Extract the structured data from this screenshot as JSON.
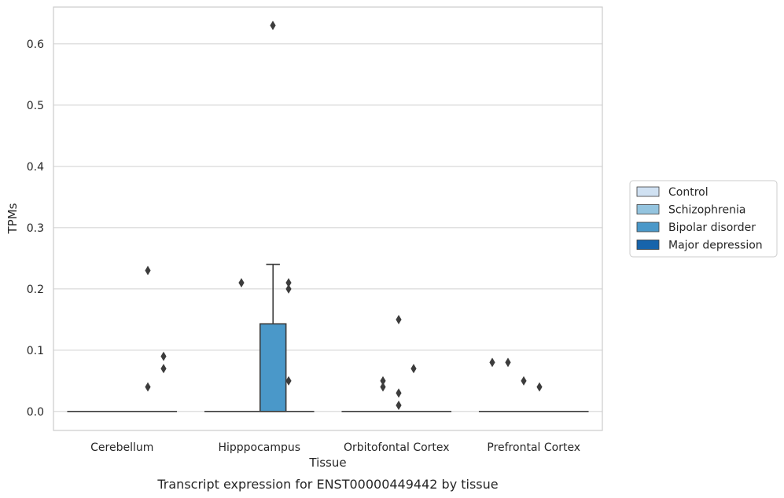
{
  "chart_data": {
    "type": "box",
    "caption": "Transcript expression for ENST00000449442 by tissue",
    "xlabel": "Tissue",
    "ylabel": "TPMs",
    "ylim": [
      -0.031,
      0.66
    ],
    "yticks": [
      "0.0",
      "0.1",
      "0.2",
      "0.3",
      "0.4",
      "0.5",
      "0.6"
    ],
    "grid": true,
    "legend_position": "right",
    "categories": [
      "Cerebellum",
      "Hipppocampus",
      "Orbitofontal Cortex",
      "Prefrontal Cortex"
    ],
    "series": [
      {
        "name": "Control",
        "color": "#d0e1f2"
      },
      {
        "name": "Schizophrenia",
        "color": "#94c4df"
      },
      {
        "name": "Bipolar disorder",
        "color": "#4a98c9"
      },
      {
        "name": "Major depression",
        "color": "#1764ab"
      }
    ],
    "boxes": [
      {
        "category": "Cerebellum",
        "q1": 0,
        "median": 0,
        "q3": 0,
        "whisker_low": 0,
        "whisker_high": 0,
        "outliers": [
          0.23,
          0.04,
          0.09,
          0.07
        ]
      },
      {
        "category": "Hipppocampus",
        "q1": 0,
        "median": 0,
        "q3": 0.143,
        "whisker_low": 0,
        "whisker_high": 0.24,
        "outliers": [
          0.21,
          0.63,
          0.21,
          0.2,
          0.05
        ]
      },
      {
        "category": "Orbitofontal Cortex",
        "q1": 0,
        "median": 0,
        "q3": 0,
        "whisker_low": 0,
        "whisker_high": 0,
        "outliers": [
          0.05,
          0.04,
          0.15,
          0.03,
          0.01,
          0.07
        ]
      },
      {
        "category": "Prefrontal Cortex",
        "q1": 0,
        "median": 0,
        "q3": 0,
        "whisker_low": 0,
        "whisker_high": 0,
        "outliers": [
          0.08,
          0.08,
          0.05,
          0.04
        ]
      }
    ]
  }
}
